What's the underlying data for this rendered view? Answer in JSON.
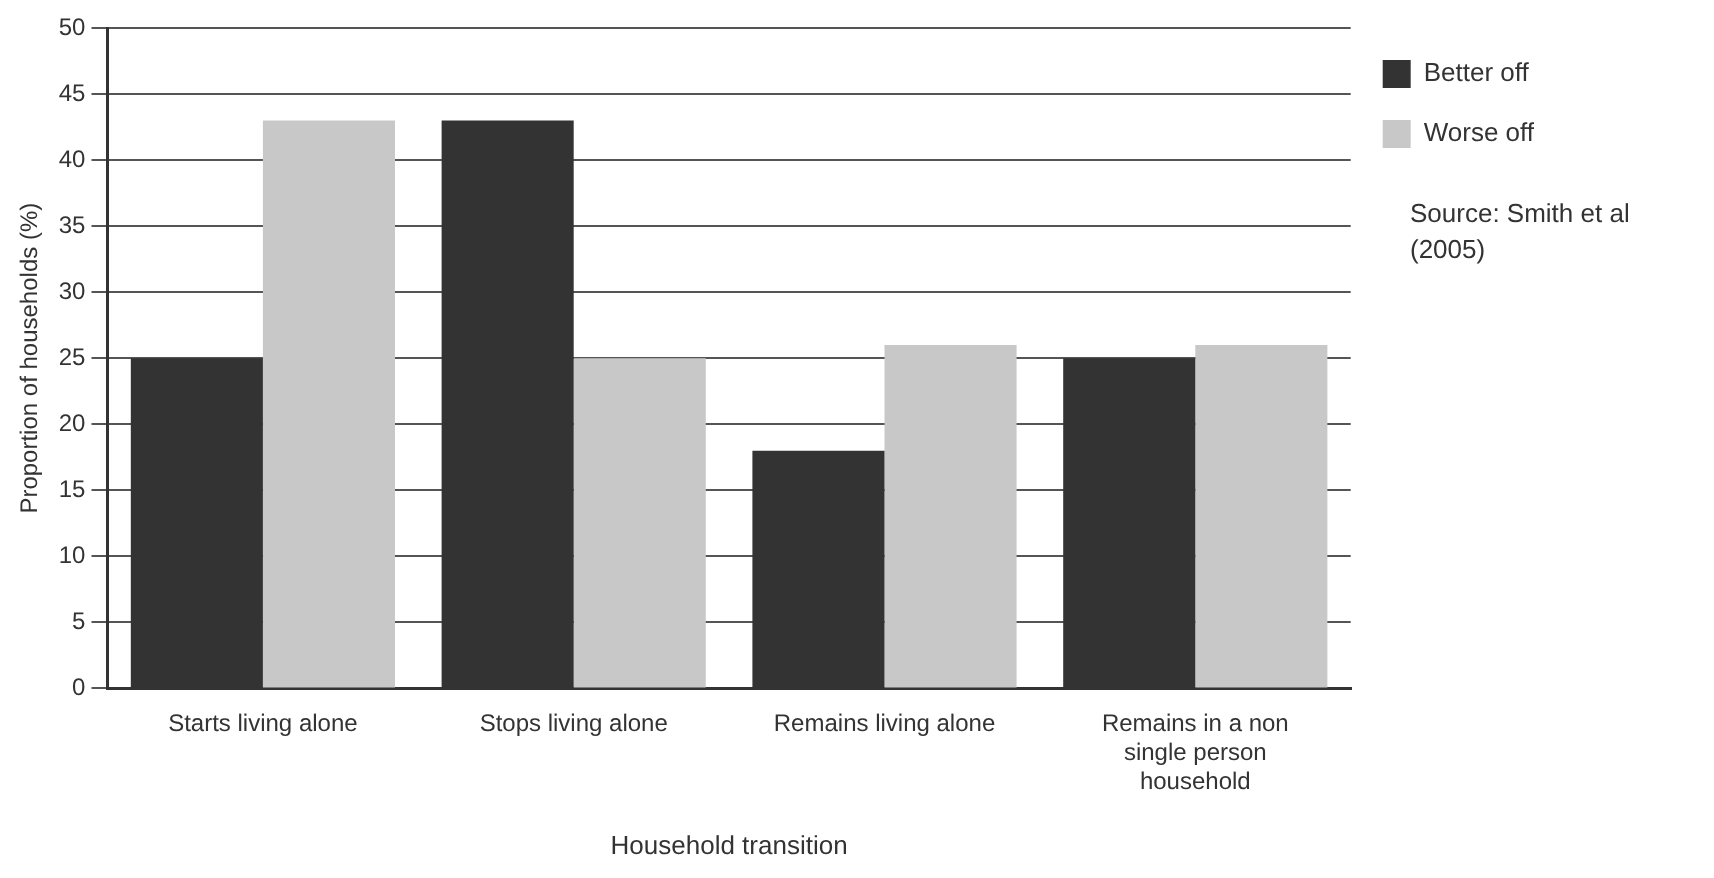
{
  "chart_data": {
    "type": "bar",
    "xlabel": "Household transition",
    "ylabel": "Proportion of households (%)",
    "categories": [
      "Starts living alone",
      "Stops living alone",
      "Remains living alone",
      "Remains in a non single person household"
    ],
    "series": [
      {
        "name": "Better off",
        "color": "#333333",
        "values": [
          25,
          43,
          18,
          25
        ]
      },
      {
        "name": "Worse off",
        "color": "#c8c8c8",
        "values": [
          43,
          25,
          26,
          26
        ]
      }
    ],
    "ylim": [
      0,
      50
    ],
    "yticks": [
      0,
      5,
      10,
      15,
      20,
      25,
      30,
      35,
      40,
      45,
      50
    ],
    "grid": "y",
    "legend": "top right",
    "annotations": [
      "Source: Smith et al (2005)"
    ]
  }
}
